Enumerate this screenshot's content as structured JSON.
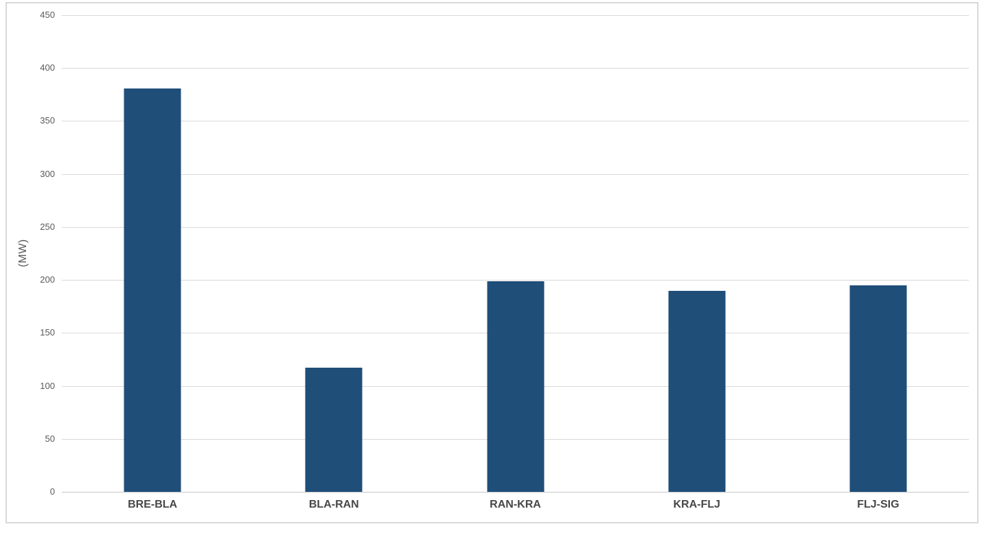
{
  "chart_data": {
    "type": "bar",
    "categories": [
      "BRE-BLA",
      "BLA-RAN",
      "RAN-KRA",
      "KRA-FLJ",
      "FLJ-SIG"
    ],
    "values": [
      381,
      117,
      199,
      190,
      195
    ],
    "title": "",
    "xlabel": "",
    "ylabel": "(MW)",
    "ylim": [
      0,
      450
    ],
    "ytick_step": 50,
    "ytick_labels": [
      "0",
      "50",
      "100",
      "150",
      "200",
      "250",
      "300",
      "350",
      "400",
      "450"
    ],
    "grid": true,
    "legend": false,
    "colors": {
      "bar_fill": "#1F4E79",
      "gridline": "#D9D9D9",
      "zero_axis_line": "#C6C6C6",
      "tick_label": "#595959",
      "category_label": "#474747",
      "panel_border": "#D9D9D9",
      "background": "#FFFFFF"
    }
  }
}
